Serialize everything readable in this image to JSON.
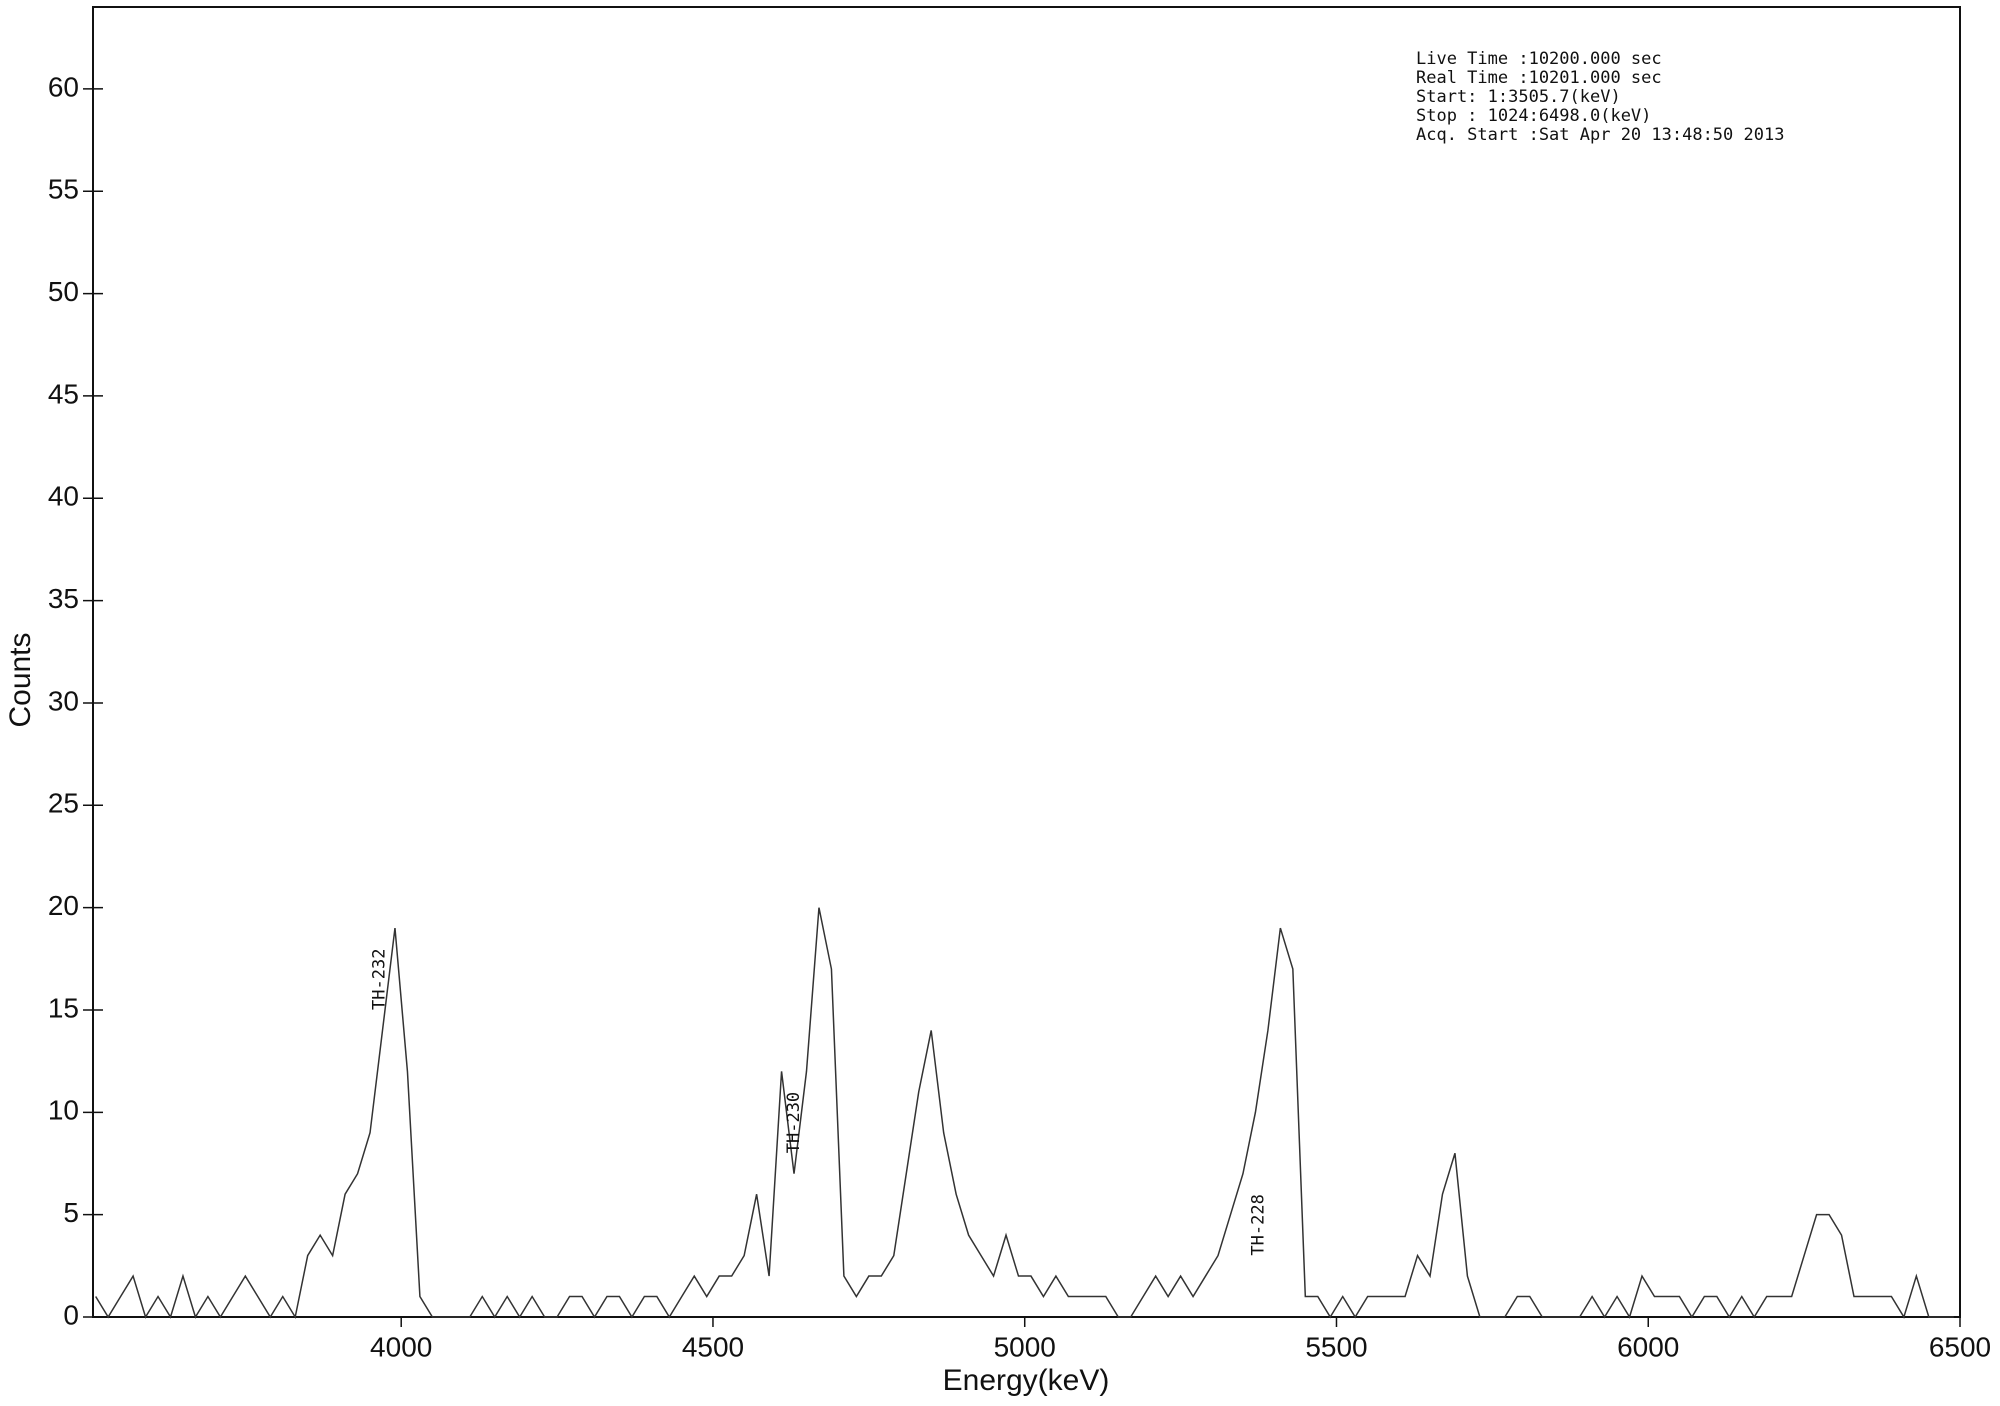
{
  "chart_data": {
    "type": "line",
    "x_label": "Energy(keV)",
    "y_label": "Counts",
    "info": [
      "Live Time  :10200.000 sec",
      "Real Time  :10201.000 sec",
      "Start:    1:3505.7(keV)",
      "Stop : 1024:6498.0(keV)",
      "Acq. Start :Sat Apr 20 13:48:50 2013"
    ],
    "annotations": [
      {
        "text": "TH-232",
        "x": 3965,
        "y": 15
      },
      {
        "text": "TH-230",
        "x": 4630,
        "y": 8
      },
      {
        "text": "TH-228",
        "x": 5375,
        "y": 3
      }
    ],
    "xlim": [
      3505.7,
      6500
    ],
    "xticks": [
      4000,
      4500,
      5000,
      5500,
      6000,
      6500
    ],
    "ylim": [
      0,
      64
    ],
    "yticks": [
      0,
      5,
      10,
      15,
      20,
      25,
      30,
      35,
      40,
      45,
      50,
      55,
      60
    ],
    "x": [
      3510,
      3530,
      3550,
      3570,
      3590,
      3610,
      3630,
      3650,
      3670,
      3690,
      3710,
      3730,
      3750,
      3770,
      3790,
      3810,
      3830,
      3850,
      3870,
      3890,
      3910,
      3930,
      3950,
      3970,
      3990,
      4010,
      4030,
      4050,
      4070,
      4090,
      4110,
      4130,
      4150,
      4170,
      4190,
      4210,
      4230,
      4250,
      4270,
      4290,
      4310,
      4330,
      4350,
      4370,
      4390,
      4410,
      4430,
      4450,
      4470,
      4490,
      4510,
      4530,
      4550,
      4570,
      4590,
      4610,
      4630,
      4650,
      4670,
      4690,
      4710,
      4730,
      4750,
      4770,
      4790,
      4810,
      4830,
      4850,
      4870,
      4890,
      4910,
      4930,
      4950,
      4970,
      4990,
      5010,
      5030,
      5050,
      5070,
      5090,
      5110,
      5130,
      5150,
      5170,
      5190,
      5210,
      5230,
      5250,
      5270,
      5290,
      5310,
      5330,
      5350,
      5370,
      5390,
      5410,
      5430,
      5450,
      5470,
      5490,
      5510,
      5530,
      5550,
      5570,
      5590,
      5610,
      5630,
      5650,
      5670,
      5690,
      5710,
      5730,
      5750,
      5770,
      5790,
      5810,
      5830,
      5850,
      5870,
      5890,
      5910,
      5930,
      5950,
      5970,
      5990,
      6010,
      6030,
      6050,
      6070,
      6090,
      6110,
      6130,
      6150,
      6170,
      6190,
      6210,
      6230,
      6250,
      6270,
      6290,
      6310,
      6330,
      6350,
      6370,
      6390,
      6410,
      6430,
      6450,
      6470,
      6490
    ],
    "series": [
      {
        "name": "Counts",
        "color": "#333333",
        "values": [
          1,
          0,
          1,
          2,
          0,
          1,
          0,
          2,
          0,
          1,
          0,
          1,
          2,
          1,
          0,
          1,
          0,
          3,
          4,
          3,
          6,
          7,
          9,
          14,
          19,
          12,
          1,
          0,
          0,
          0,
          0,
          1,
          0,
          1,
          0,
          1,
          0,
          0,
          1,
          1,
          0,
          1,
          1,
          0,
          1,
          1,
          0,
          1,
          2,
          1,
          2,
          2,
          3,
          6,
          2,
          12,
          7,
          12,
          20,
          17,
          2,
          1,
          2,
          2,
          3,
          7,
          11,
          14,
          9,
          6,
          4,
          3,
          2,
          4,
          2,
          2,
          1,
          2,
          1,
          1,
          1,
          1,
          0,
          0,
          1,
          2,
          1,
          2,
          1,
          2,
          3,
          5,
          7,
          10,
          14,
          19,
          17,
          1,
          1,
          0,
          1,
          0,
          1,
          1,
          1,
          1,
          3,
          2,
          6,
          8,
          2,
          0,
          0,
          0,
          1,
          1,
          0,
          0,
          0,
          0,
          1,
          0,
          1,
          0,
          2,
          1,
          1,
          1,
          0,
          1,
          1,
          0,
          1,
          0,
          1,
          1,
          1,
          3,
          5,
          5,
          4,
          1,
          1,
          1,
          1,
          0,
          2,
          0,
          0,
          0
        ]
      }
    ]
  }
}
